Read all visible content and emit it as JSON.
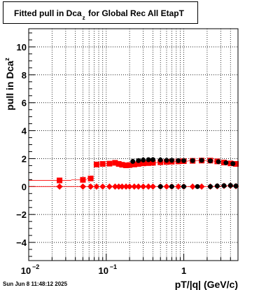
{
  "timestamp": "Sun Jun  8 11:48:12 2025",
  "chart_data": {
    "type": "scatter",
    "title": "Fitted pull in Dca_z for Global Rec All EtapT",
    "title_parts": {
      "main": "Fitted pull in Dca",
      "sub": "z",
      "rest": "for Global Rec All EtapT"
    },
    "xlabel": "pT/|q| (GeV/c)",
    "ylabel": "pull in Dca_z",
    "ylabel_parts": {
      "main": "pull in Dca",
      "sub": "z"
    },
    "x_scale": "log",
    "xlim": [
      0.01,
      5.0
    ],
    "ylim": [
      -5.3,
      11.3
    ],
    "grid": true,
    "x_ticks": [
      {
        "v": 0.01,
        "label": "10",
        "exp": "−2"
      },
      {
        "v": 0.1,
        "label": "10",
        "exp": "−1"
      },
      {
        "v": 1,
        "label": "1",
        "exp": ""
      }
    ],
    "y_ticks": [
      -4,
      -2,
      0,
      2,
      4,
      6,
      8,
      10
    ],
    "y_tick_labels": [
      "−4",
      "−2",
      "0",
      "2",
      "4",
      "6",
      "8",
      "10"
    ],
    "series": [
      {
        "marker": "square",
        "color": "#ff0000",
        "points": [
          [
            0.025,
            0.44
          ],
          [
            0.05,
            0.48
          ],
          [
            0.063,
            0.58
          ],
          [
            0.075,
            1.58
          ],
          [
            0.09,
            1.62
          ],
          [
            0.11,
            1.64
          ],
          [
            0.13,
            1.7
          ],
          [
            0.145,
            1.62
          ],
          [
            0.16,
            1.56
          ],
          [
            0.18,
            1.52
          ],
          [
            0.2,
            1.54
          ],
          [
            0.23,
            1.58
          ],
          [
            0.26,
            1.62
          ],
          [
            0.3,
            1.66
          ],
          [
            0.35,
            1.68
          ],
          [
            0.4,
            1.7
          ],
          [
            0.5,
            1.74
          ],
          [
            0.6,
            1.76
          ],
          [
            0.7,
            1.78
          ],
          [
            0.85,
            1.8
          ],
          [
            1.0,
            1.82
          ],
          [
            1.3,
            1.84
          ],
          [
            1.7,
            1.86
          ],
          [
            2.2,
            1.86
          ],
          [
            2.7,
            1.8
          ],
          [
            3.3,
            1.72
          ],
          [
            4.0,
            1.66
          ],
          [
            4.7,
            1.62
          ]
        ],
        "errors": [
          0.2,
          0.2,
          0.15,
          0.05,
          0.05,
          0.05,
          0.05,
          0.05,
          0.05,
          0.05,
          0.05,
          0.05,
          0.05,
          0.05,
          0.05,
          0.05,
          0.05,
          0.05,
          0.05,
          0.05,
          0.05,
          0.05,
          0.05,
          0.05,
          0.05,
          0.05,
          0.05,
          0.05
        ]
      },
      {
        "marker": "diamond",
        "color": "#ff0000",
        "points": [
          [
            0.025,
            0.0
          ],
          [
            0.05,
            0.0
          ],
          [
            0.063,
            0.0
          ],
          [
            0.075,
            0.0
          ],
          [
            0.09,
            0.0
          ],
          [
            0.11,
            0.0
          ],
          [
            0.13,
            0.0
          ],
          [
            0.145,
            0.0
          ],
          [
            0.16,
            0.0
          ],
          [
            0.18,
            0.0
          ],
          [
            0.2,
            0.0
          ],
          [
            0.23,
            0.0
          ],
          [
            0.26,
            0.0
          ],
          [
            0.3,
            0.0
          ],
          [
            0.35,
            0.0
          ],
          [
            0.4,
            0.0
          ],
          [
            0.5,
            0.0
          ],
          [
            0.6,
            0.0
          ],
          [
            0.7,
            0.0
          ],
          [
            0.85,
            0.0
          ],
          [
            1.0,
            0.0
          ],
          [
            1.3,
            0.0
          ],
          [
            1.7,
            0.0
          ],
          [
            2.2,
            0.0
          ],
          [
            2.7,
            0.02
          ],
          [
            3.3,
            0.05
          ],
          [
            4.0,
            0.06
          ],
          [
            4.7,
            0.03
          ]
        ],
        "errors": [
          0.1,
          0.1,
          0.08,
          0.02,
          0.02,
          0.02,
          0.02,
          0.02,
          0.02,
          0.02,
          0.02,
          0.02,
          0.02,
          0.02,
          0.02,
          0.02,
          0.02,
          0.02,
          0.02,
          0.02,
          0.02,
          0.02,
          0.02,
          0.02,
          0.02,
          0.02,
          0.02,
          0.02
        ]
      },
      {
        "marker": "circle",
        "color": "#000000",
        "points": [
          [
            0.22,
            1.8
          ],
          [
            0.26,
            1.86
          ],
          [
            0.3,
            1.9
          ],
          [
            0.35,
            1.92
          ],
          [
            0.4,
            1.92
          ],
          [
            0.5,
            1.9
          ],
          [
            0.6,
            1.88
          ],
          [
            0.7,
            1.88
          ],
          [
            0.85,
            1.86
          ],
          [
            1.0,
            1.86
          ],
          [
            1.3,
            1.86
          ],
          [
            1.7,
            1.88
          ],
          [
            2.2,
            1.84
          ],
          [
            2.8,
            1.78
          ],
          [
            3.5,
            1.7
          ],
          [
            4.3,
            1.64
          ]
        ]
      },
      {
        "marker": "circle",
        "color": "#000000",
        "points": [
          [
            0.5,
            0.0
          ],
          [
            0.7,
            0.0
          ],
          [
            1.0,
            0.0
          ],
          [
            1.5,
            0.0
          ],
          [
            2.2,
            0.0
          ],
          [
            2.7,
            0.04
          ],
          [
            3.3,
            0.06
          ],
          [
            4.0,
            0.08
          ],
          [
            4.7,
            0.04
          ]
        ]
      }
    ]
  }
}
